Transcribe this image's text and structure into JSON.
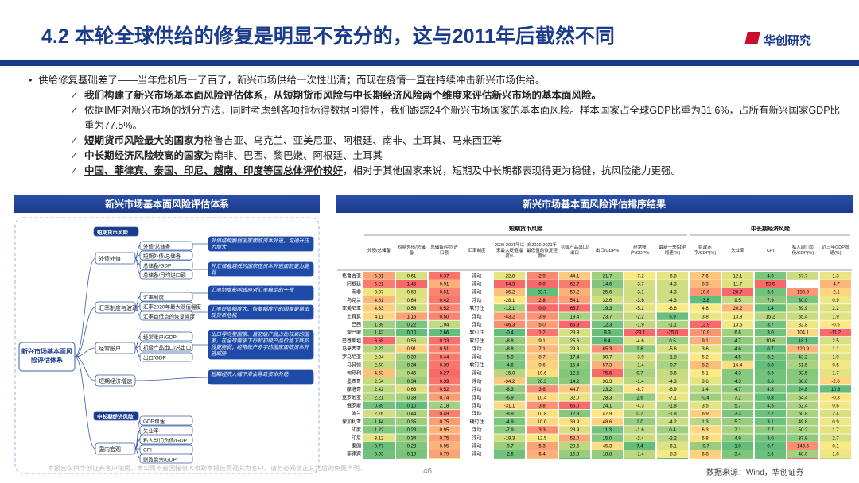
{
  "header": {
    "title": "4.2 本轮全球供给的修复是明显不充分的，这与2011年后截然不同",
    "logo": "华创研究"
  },
  "bullets": {
    "main": "供给修复基础差了——当年危机后一了百了，新兴市场供给一次性出清；而现在疫情一直在持续冲击新兴市场供给。",
    "sub": [
      {
        "em": "我们构建了新兴市场基本面风险评估体系，从短期货币风险与中长期经济风险两个维度来评估新兴市场的基本面风险。"
      },
      {
        "text": "依据IMF对新兴市场的划分方法，同时考虑到各项指标得数据可得性，我们跟踪24个新兴市场国家的基本面风险。样本国家占全球GDP比重为31.6%，占所有新兴国家GDP比重为77.5%。"
      },
      {
        "em": "短期货币风险最大的国家为",
        "text": "格鲁吉亚、乌克兰、亚美尼亚、阿根廷、南非、土耳其、马来西亚等"
      },
      {
        "em": "中长期经济风险较高的国家为",
        "text": "南非、巴西、黎巴嫩、阿根廷、土耳其"
      },
      {
        "em": "中国、菲律宾、泰国、印尼、越南、印度等国总体评价较好",
        "text": "，相对于其他国家来说，短期及中长期都表现得更为稳健，抗风险能力更强。"
      }
    ]
  },
  "left_panel": {
    "title": "新兴市场基本面风险评估体系",
    "root": "新兴市场基本面风险评估体系",
    "sections": [
      {
        "label": "短期货币风险",
        "groups": [
          {
            "name": "外债外值",
            "items": [
              "外债/总储备",
              "短期外债/总储备",
              "总储备/GDP",
              "总储备/月均进口额"
            ],
            "notes": [
              "外债结构脆弱国家面临资本外逃，沟通升压力增大",
              "外汇储备越低的国家在资本外逃面前更为脆弱"
            ]
          },
          {
            "name": "汇率制度与波动",
            "items": [
              "汇率制度",
              "汇率2020年最大贬值幅度",
              "汇率自低点的恢复幅度"
            ],
            "notes": [
              "汇率制度影响政府对汇率稳定的干预",
              "汇率贬值幅度大、恢复幅度小的国家更易出现货币危机"
            ]
          },
          {
            "name": "经常账户",
            "items": [
              "经常账户/GDP",
              "初级产品出口/总出口",
              "出口/GDP"
            ],
            "notes": [
              "出口导向型国家、且初级产品占比较高的国家，在全球需求下行和初级产品价格下跌阶段更脆弱；经常账户赤字的国家面临资本外逃威胁"
            ]
          },
          {
            "name": "短期经济增速",
            "items": [],
            "notes": [
              "短期经济大幅下滑会导致资本外逃"
            ]
          }
        ]
      },
      {
        "label": "中长期经济风险",
        "groups": [
          {
            "name": "国内宏观",
            "items": [
              "GDP增速",
              "失业率",
              "私人部门负债/GDP",
              "CPI",
              "财政盈余/GDP"
            ],
            "notes": []
          }
        ]
      }
    ]
  },
  "right_panel": {
    "title": "新兴市场基本面风险评估排序结果",
    "table": {
      "groups": [
        "短期货币风险",
        "中长期经济风险"
      ],
      "columns": [
        "外债/总储备",
        "短期外债/总储备",
        "总储备/平均进口额",
        "汇率制度",
        "2020-2021年以来最大贬值幅度%",
        "自2020-2021年最低值的恢复程度%",
        "初级产品出口/出口",
        "出口/GDP%",
        "经常账户/GDP%",
        "最新一季GDP增速(%)",
        "财政赤字/GDP(%)",
        "失业率",
        "CPI",
        "私人部门负债/GDP(%)",
        "近三年GDP增速(%)"
      ],
      "rows": [
        {
          "name": "格鲁吉亚",
          "values": [
            "5.31",
            "0.61",
            "0.37",
            "浮动",
            "-22.8",
            "2.9",
            "44.1",
            "21.7",
            "-7.2",
            "-6.8",
            "7.6",
            "12.1",
            "4.9",
            "67.7",
            "1.3"
          ]
        },
        {
          "name": "阿根廷",
          "values": [
            "6.21",
            "1.45",
            "0.91",
            "浮动",
            "-54.3",
            "0.0",
            "62.7",
            "14.6",
            "-3.7",
            "-4.3",
            "8.3",
            "11.7",
            "53.5",
            null,
            "-4.7"
          ]
        },
        {
          "name": "南非",
          "values": [
            "3.37",
            "0.63",
            "0.51",
            "浮动",
            "-36.2",
            "23.7",
            "50.2",
            "25.6",
            "-3.1",
            "-4.3",
            "10.6",
            "28.7",
            "3.6",
            "139.3",
            "-2.1"
          ]
        },
        {
          "name": "乌克兰",
          "values": [
            "4.81",
            "0.64",
            "0.42",
            "浮动",
            "-28.1",
            "2.8",
            "54.1",
            "32.6",
            "-3.6",
            "-4.3",
            "-3.8",
            "9.5",
            "7.9",
            "30.0",
            "0.9"
          ]
        },
        {
          "name": "亚美尼亚",
          "values": [
            "4.33",
            "0.58",
            "0.52",
            "软钉住",
            "-12.1",
            "0.0",
            "65.7",
            "19.3",
            "-5.2",
            "-8.8",
            "4.8",
            "20.2",
            "1.4",
            "59.9",
            "2.2"
          ]
        },
        {
          "name": "土耳其",
          "values": [
            "4.11",
            "1.16",
            "0.50",
            "浮动",
            "-43.2",
            "3.9",
            "19.4",
            "23.7",
            "-2.2",
            "5.9",
            "3.8",
            "13.9",
            "15.2",
            "65.4",
            "1.9"
          ]
        },
        {
          "name": "巴西",
          "values": [
            "1.89",
            "0.22",
            "1.94",
            "浮动",
            "-46.3",
            "5.0",
            "66.9",
            "12.3",
            "-1.9",
            "-1.1",
            "13.9",
            "13.6",
            "3.7",
            "82.8",
            "-0.5"
          ]
        },
        {
          "name": "黎巴嫩",
          "values": [
            "1.42",
            "0.10",
            "2.66",
            "软钉住",
            "-0.4",
            "1.2",
            "28.9",
            "9.3",
            "-23.1",
            "-25.0",
            "10.9",
            "6.6",
            "3.0",
            "104.1",
            "-11.2"
          ]
        },
        {
          "name": "巴基斯坦",
          "values": [
            "6.68",
            "0.56",
            "0.33",
            "软钉住",
            "-8.8",
            "9.1",
            "25.6",
            "8.4",
            "-4.6",
            "0.5",
            "9.1",
            "4.7",
            "10.6",
            "18.1",
            "2.5"
          ]
        },
        {
          "name": "马来西亚",
          "values": [
            "2.23",
            "0.91",
            "0.51",
            "浮动",
            "-8.8",
            "7.1",
            "29.3",
            "65.3",
            "2.8",
            "-5.6",
            "3.6",
            "4.6",
            "0.7",
            "120.9",
            "1.1"
          ]
        },
        {
          "name": "罗马尼亚",
          "values": [
            "2.94",
            "0.39",
            "0.44",
            "浮动",
            "-5.9",
            "8.7",
            "17.4",
            "30.7",
            "-3.9",
            "-1.8",
            "5.2",
            "4.5",
            "3.2",
            "43.2",
            "1.9"
          ]
        },
        {
          "name": "马其顿",
          "values": [
            "2.50",
            "0.34",
            "0.39",
            "软钉住",
            "-4.6",
            "9.6",
            "15.4",
            "57.3",
            "-1.4",
            "-0.7",
            "8.2",
            "16.4",
            "0.8",
            "51.5",
            "0.5"
          ]
        },
        {
          "name": "匈牙利",
          "values": [
            "4.63",
            "0.46",
            "0.27",
            "浮动",
            "-15.0",
            "10.6",
            "12.6",
            "75.6",
            "0.7",
            "-3.6",
            "5.1",
            "4.3",
            "3.3",
            "33.5",
            "1.7"
          ]
        },
        {
          "name": "墨西哥",
          "values": [
            "2.54",
            "0.34",
            "0.39",
            "浮动",
            "-34.2",
            "20.3",
            "14.2",
            "36.3",
            "-1.4",
            "-4.3",
            "3.6",
            "4.3",
            "3.6",
            "36.6",
            "-2.0"
          ]
        },
        {
          "name": "摩洛哥",
          "values": [
            "2.42",
            "0.63",
            "0.52",
            "浮动",
            "-8.3",
            "3.6",
            "44.7",
            "23.2",
            "-8.7",
            "-6.9",
            "1.4",
            "4.7",
            "4.8",
            "24.8",
            "10.8"
          ]
        },
        {
          "name": "克罗地亚",
          "values": [
            "2.21",
            "0.38",
            "0.74",
            "浮动",
            "-6.9",
            "10.4",
            "32.0",
            "28.3",
            "2.6",
            "-7.1",
            "-0.4",
            "7.2",
            "0.8",
            "54.4",
            "-0.8"
          ]
        },
        {
          "name": "俄罗斯",
          "values": [
            "0.89",
            "0.10",
            "2.18",
            "浮动",
            "-31.1",
            "3.8",
            "66.0",
            "24.1",
            "-4.3",
            "-1.8",
            "3.5",
            "5.7",
            "4.5",
            "52.4",
            "0.6"
          ]
        },
        {
          "name": "波兰",
          "values": [
            "2.76",
            "0.44",
            "0.49",
            "浮动",
            "-8.9",
            "10.8",
            "12.8",
            "42.9",
            "0.2",
            "-1.8",
            "6.9",
            "3.3",
            "2.2",
            "50.8",
            "2.4"
          ]
        },
        {
          "name": "保加利亚",
          "values": [
            "1.44",
            "0.35",
            "0.75",
            "硬钉住",
            "-4.9",
            "10.0",
            "38.9",
            "48.6",
            "2.0",
            "-4.2",
            "1.3",
            "5.7",
            "3.1",
            "49.8",
            "0.9"
          ]
        },
        {
          "name": "印度",
          "values": [
            "1.22",
            "0.23",
            "0.95",
            "浮动",
            "-7.9",
            "3.3",
            "28.9",
            "11.3",
            "-1.6",
            "0.4",
            "6.3",
            "7.1",
            "7.7",
            "50.2",
            "1.7"
          ]
        },
        {
          "name": "印尼",
          "values": [
            "3.12",
            "0.34",
            "0.75",
            "浮动",
            "-19.3",
            "12.5",
            "52.0",
            "15.0",
            "-2.4",
            "-2.2",
            "5.8",
            "4.9",
            "3.0",
            "37.8",
            "2.7"
          ]
        },
        {
          "name": "泰国",
          "values": [
            "0.77",
            "0.23",
            "0.95",
            "浮动",
            "-9.7",
            "5.3",
            "23.6",
            "45.3",
            "7.4",
            "-6.1",
            "-0.7",
            "1.0",
            "0.7",
            "143.5",
            "0.1"
          ]
        },
        {
          "name": "菲律宾",
          "values": [
            "0.93",
            "0.19",
            "0.79",
            "浮动",
            "-2.5",
            "6.4",
            "16.8",
            "18.8",
            "-1.4",
            "-8.3",
            "6.8",
            "3.4",
            "2.5",
            "48.0",
            "1.0"
          ]
        },
        {
          "name": "中国",
          "values": [
            "0.64",
            "0.36",
            "1.55",
            "浮动",
            "-8.9",
            "8.7",
            "6.5",
            "17.5",
            "0.9",
            "6.5",
            "6.2",
            "5.5",
            "2.9",
            "165.4",
            "4.9"
          ]
        }
      ]
    }
  },
  "footer": {
    "disclaimer": "本报告仅供华创证券客户使用，本公司不会因接收人收到本报告而视其为客户。请务必阅读正文之后的免责声明。",
    "page": "46",
    "source": "数据来源：Wind，华创证券"
  }
}
